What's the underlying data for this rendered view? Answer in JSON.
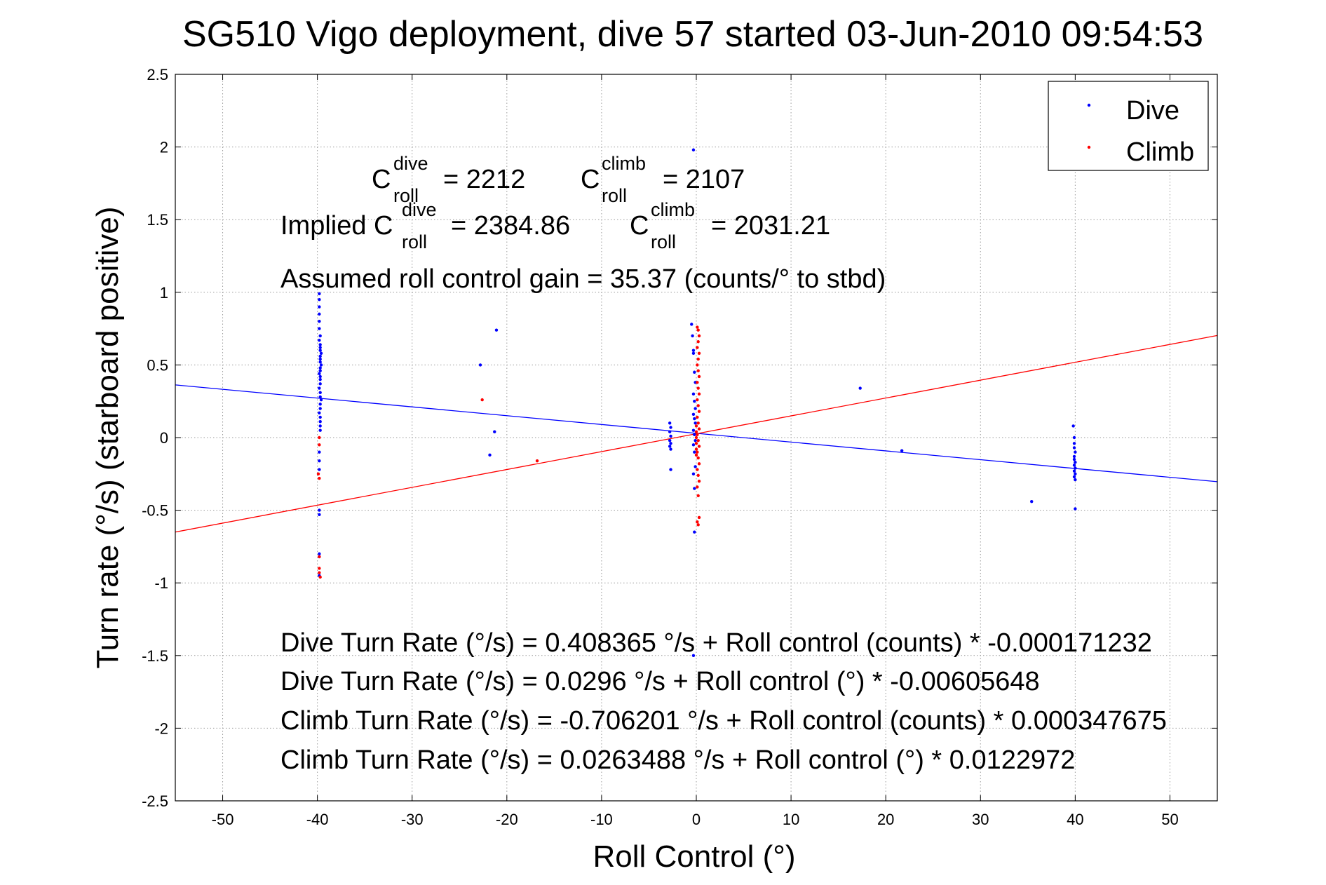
{
  "chart_data": {
    "type": "scatter",
    "title": "SG510 Vigo deployment, dive 57 started 03-Jun-2010 09:54:53",
    "xlabel": "Roll Control (°)",
    "ylabel": "Turn rate (°/s)  (starboard positive)",
    "xlim": [
      -55,
      55
    ],
    "ylim": [
      -2.5,
      2.5
    ],
    "xticks": [
      -50,
      -40,
      -30,
      -20,
      -10,
      0,
      10,
      20,
      30,
      40,
      50
    ],
    "yticks": [
      -2.5,
      -2,
      -1.5,
      -1,
      -0.5,
      0,
      0.5,
      1,
      1.5,
      2,
      2.5
    ],
    "grid": true,
    "legend_position": "top-right",
    "series": [
      {
        "name": "Dive",
        "color": "#0000ff",
        "points": [
          [
            -39.8,
            0.99
          ],
          [
            -39.8,
            0.95
          ],
          [
            -39.8,
            0.9
          ],
          [
            -39.8,
            0.85
          ],
          [
            -39.8,
            0.8
          ],
          [
            -39.8,
            0.75
          ],
          [
            -39.7,
            0.7
          ],
          [
            -39.8,
            0.67
          ],
          [
            -39.7,
            0.64
          ],
          [
            -39.7,
            0.62
          ],
          [
            -39.7,
            0.6
          ],
          [
            -39.6,
            0.58
          ],
          [
            -39.7,
            0.56
          ],
          [
            -39.7,
            0.54
          ],
          [
            -39.7,
            0.52
          ],
          [
            -39.6,
            0.5
          ],
          [
            -39.7,
            0.48
          ],
          [
            -39.7,
            0.46
          ],
          [
            -39.8,
            0.44
          ],
          [
            -39.7,
            0.42
          ],
          [
            -39.7,
            0.4
          ],
          [
            -39.7,
            0.37
          ],
          [
            -39.8,
            0.34
          ],
          [
            -39.7,
            0.31
          ],
          [
            -39.7,
            0.28
          ],
          [
            -39.6,
            0.26
          ],
          [
            -39.7,
            0.23
          ],
          [
            -39.7,
            0.2
          ],
          [
            -39.8,
            0.17
          ],
          [
            -39.7,
            0.14
          ],
          [
            -39.7,
            0.11
          ],
          [
            -39.7,
            0.08
          ],
          [
            -39.7,
            0.05
          ],
          [
            -39.8,
            -0.1
          ],
          [
            -39.8,
            -0.16
          ],
          [
            -39.8,
            -0.22
          ],
          [
            -39.8,
            -0.5
          ],
          [
            -39.8,
            -0.53
          ],
          [
            -39.8,
            -0.8
          ],
          [
            -39.8,
            -0.82
          ],
          [
            -39.8,
            -0.95
          ],
          [
            -22.8,
            0.5
          ],
          [
            -21.1,
            0.74
          ],
          [
            -21.3,
            0.04
          ],
          [
            -21.8,
            -0.12
          ],
          [
            -0.3,
            1.98
          ],
          [
            -0.5,
            0.78
          ],
          [
            -0.4,
            0.7
          ],
          [
            -0.3,
            0.58
          ],
          [
            -0.3,
            0.6
          ],
          [
            -0.2,
            0.45
          ],
          [
            -0.1,
            0.38
          ],
          [
            -0.3,
            0.3
          ],
          [
            -0.2,
            0.25
          ],
          [
            -0.1,
            0.2
          ],
          [
            -0.3,
            0.16
          ],
          [
            -0.2,
            0.13
          ],
          [
            -0.1,
            0.1
          ],
          [
            -0.3,
            0.05
          ],
          [
            -0.2,
            0.02
          ],
          [
            -0.1,
            -0.02
          ],
          [
            -0.3,
            -0.05
          ],
          [
            -0.2,
            -0.1
          ],
          [
            -0.1,
            -0.2
          ],
          [
            -0.3,
            -0.25
          ],
          [
            -0.2,
            -0.35
          ],
          [
            -0.2,
            -0.65
          ],
          [
            -0.3,
            -1.5
          ],
          [
            -2.8,
            0.1
          ],
          [
            -2.7,
            0.07
          ],
          [
            -2.8,
            0.04
          ],
          [
            -2.7,
            0.01
          ],
          [
            -2.8,
            -0.02
          ],
          [
            -2.7,
            -0.04
          ],
          [
            -2.8,
            -0.06
          ],
          [
            -2.7,
            -0.08
          ],
          [
            -2.7,
            -0.22
          ],
          [
            17.3,
            0.34
          ],
          [
            21.7,
            -0.09
          ],
          [
            35.4,
            -0.44
          ],
          [
            39.8,
            0.08
          ],
          [
            39.9,
            0.0
          ],
          [
            39.9,
            -0.04
          ],
          [
            39.9,
            -0.07
          ],
          [
            40.0,
            -0.1
          ],
          [
            39.9,
            -0.13
          ],
          [
            39.9,
            -0.15
          ],
          [
            40.0,
            -0.17
          ],
          [
            39.9,
            -0.19
          ],
          [
            40.0,
            -0.21
          ],
          [
            39.9,
            -0.23
          ],
          [
            40.0,
            -0.25
          ],
          [
            39.9,
            -0.27
          ],
          [
            40.0,
            -0.29
          ],
          [
            40.0,
            -0.49
          ]
        ],
        "fit": {
          "intercept": 0.0296,
          "slope": -0.00605648
        }
      },
      {
        "name": "Climb",
        "color": "#ff0000",
        "points": [
          [
            -39.8,
            0.0
          ],
          [
            -39.8,
            -0.05
          ],
          [
            -39.9,
            -0.25
          ],
          [
            -39.8,
            -0.28
          ],
          [
            -39.8,
            -0.82
          ],
          [
            -39.8,
            -0.9
          ],
          [
            -39.8,
            -0.93
          ],
          [
            -39.7,
            -0.96
          ],
          [
            -22.6,
            0.26
          ],
          [
            -16.8,
            -0.16
          ],
          [
            0.1,
            0.76
          ],
          [
            0.2,
            0.74
          ],
          [
            0.3,
            0.7
          ],
          [
            0.2,
            0.66
          ],
          [
            0.1,
            0.62
          ],
          [
            0.3,
            0.58
          ],
          [
            0.2,
            0.54
          ],
          [
            0.1,
            0.5
          ],
          [
            0.2,
            0.46
          ],
          [
            0.3,
            0.42
          ],
          [
            0.1,
            0.38
          ],
          [
            0.2,
            0.34
          ],
          [
            0.3,
            0.3
          ],
          [
            0.1,
            0.26
          ],
          [
            0.2,
            0.22
          ],
          [
            0.3,
            0.18
          ],
          [
            0.1,
            0.14
          ],
          [
            0.2,
            0.1
          ],
          [
            0.3,
            0.06
          ],
          [
            0.1,
            0.02
          ],
          [
            0.2,
            -0.02
          ],
          [
            0.3,
            -0.06
          ],
          [
            0.1,
            -0.1
          ],
          [
            0.2,
            -0.14
          ],
          [
            0.3,
            -0.18
          ],
          [
            0.1,
            -0.22
          ],
          [
            0.2,
            -0.26
          ],
          [
            0.3,
            -0.3
          ],
          [
            0.1,
            -0.34
          ],
          [
            0.2,
            -0.4
          ],
          [
            0.3,
            -0.55
          ],
          [
            0.1,
            -0.58
          ],
          [
            0.2,
            -0.6
          ],
          [
            0.0,
            0.08
          ],
          [
            0.0,
            0.04
          ],
          [
            0.0,
            0.0
          ],
          [
            0.0,
            -0.04
          ],
          [
            0.0,
            -0.08
          ],
          [
            0.0,
            -0.12
          ]
        ],
        "fit": {
          "intercept": 0.0263488,
          "slope": 0.0122972
        }
      }
    ],
    "annotations": {
      "c_roll_dive_label": "C",
      "c_roll_dive_sup": "dive",
      "c_roll_dive_sub": "roll",
      "c_roll_dive_value": "= 2212",
      "c_roll_climb_label": "C",
      "c_roll_climb_sup": "climb",
      "c_roll_climb_sub": "roll",
      "c_roll_climb_value": "= 2107",
      "implied_prefix": "Implied C",
      "implied_dive_sup": "dive",
      "implied_dive_sub": "roll",
      "implied_dive_value": "= 2384.86",
      "implied_climb_label": "C",
      "implied_climb_sup": "climb",
      "implied_climb_sub": "roll",
      "implied_climb_value": "= 2031.21",
      "gain": "Assumed roll control gain = 35.37 (counts/° to stbd)",
      "eq_dive_counts": "Dive Turn Rate (°/s) = 0.408365 °/s + Roll control (counts) * -0.000171232",
      "eq_dive_deg": "Dive Turn Rate (°/s) = 0.0296 °/s + Roll control (°) * -0.00605648",
      "eq_climb_counts": "Climb Turn Rate (°/s) = -0.706201 °/s + Roll control (counts) * 0.000347675",
      "eq_climb_deg": "Climb Turn Rate (°/s) = 0.0263488 °/s + Roll control (°) * 0.0122972"
    }
  }
}
